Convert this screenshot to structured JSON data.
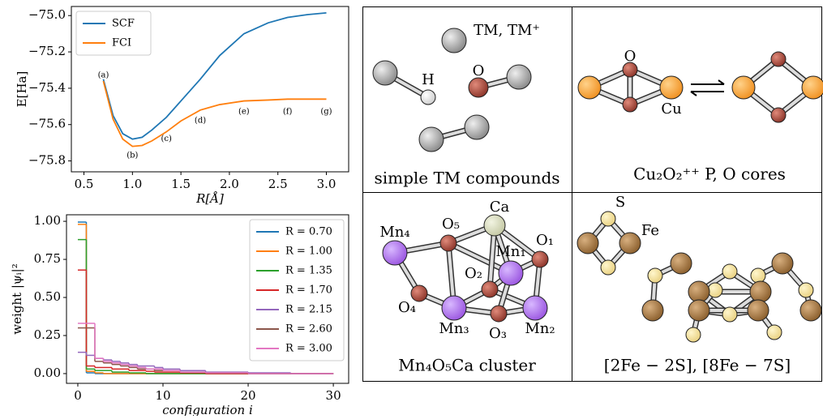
{
  "chart_data": [
    {
      "type": "line",
      "ylabel": "E[Ha]",
      "xlabel": "R[Å]",
      "x": [
        0.7,
        0.8,
        0.9,
        1.0,
        1.1,
        1.2,
        1.35,
        1.5,
        1.7,
        1.9,
        2.15,
        2.4,
        2.6,
        2.8,
        3.0
      ],
      "series": [
        {
          "name": "SCF",
          "color": "#1f77b4",
          "values": [
            -75.35,
            -75.55,
            -75.65,
            -75.68,
            -75.67,
            -75.63,
            -75.56,
            -75.47,
            -75.35,
            -75.22,
            -75.1,
            -75.04,
            -75.01,
            -74.995,
            -74.985
          ]
        },
        {
          "name": "FCI",
          "color": "#ff7f0e",
          "values": [
            -75.36,
            -75.57,
            -75.68,
            -75.72,
            -75.715,
            -75.69,
            -75.64,
            -75.58,
            -75.52,
            -75.49,
            -75.47,
            -75.465,
            -75.46,
            -75.46,
            -75.46
          ]
        }
      ],
      "annotations": [
        {
          "text": "(a)",
          "x": 0.7,
          "y": -75.33
        },
        {
          "text": "(b)",
          "x": 1.0,
          "y": -75.77
        },
        {
          "text": "(c)",
          "x": 1.35,
          "y": -75.68
        },
        {
          "text": "(d)",
          "x": 1.7,
          "y": -75.58
        },
        {
          "text": "(e)",
          "x": 2.15,
          "y": -75.53
        },
        {
          "text": "(f)",
          "x": 2.6,
          "y": -75.53
        },
        {
          "text": "(g)",
          "x": 3.0,
          "y": -75.53
        }
      ],
      "xlim": [
        0.37,
        3.23
      ],
      "xticks": [
        0.5,
        {
          "value": 1,
          "label": "1.0"
        },
        1.5,
        {
          "value": 2,
          "label": "2.0"
        },
        2.5,
        {
          "value": 3,
          "label": "3.0"
        }
      ],
      "ylim": [
        -75.86,
        -74.95
      ],
      "yticks": [
        {
          "value": -75.8,
          "label": "−75.8"
        },
        {
          "value": -75.6,
          "label": "−75.6"
        },
        {
          "value": -75.4,
          "label": "−75.4"
        },
        {
          "value": -75.2,
          "label": "−75.2"
        },
        {
          "value": -75,
          "label": "−75.0"
        }
      ],
      "legend": "upper left"
    },
    {
      "type": "step",
      "ylabel": "weight |ψᵢ|²",
      "xlabel": "configuration i",
      "x": [
        0,
        1,
        2,
        3,
        4,
        5,
        6,
        7,
        8,
        9,
        10,
        12,
        15,
        20,
        25,
        30
      ],
      "series": [
        {
          "name": "R = 0.70",
          "color": "#1f77b4",
          "values": [
            0.995,
            0.005,
            0,
            0,
            0,
            0,
            0,
            0,
            0,
            0,
            0,
            0,
            0,
            0,
            0,
            0
          ]
        },
        {
          "name": "R = 1.00",
          "color": "#ff7f0e",
          "values": [
            0.98,
            0.015,
            0.005,
            0,
            0,
            0,
            0,
            0,
            0,
            0,
            0,
            0,
            0,
            0,
            0,
            0
          ]
        },
        {
          "name": "R = 1.35",
          "color": "#2ca02c",
          "values": [
            0.88,
            0.03,
            0.02,
            0.02,
            0.01,
            0.01,
            0.005,
            0.005,
            0,
            0,
            0,
            0,
            0,
            0,
            0,
            0
          ]
        },
        {
          "name": "R = 1.70",
          "color": "#d62728",
          "values": [
            0.68,
            0.05,
            0.04,
            0.04,
            0.03,
            0.03,
            0.02,
            0.02,
            0.015,
            0.01,
            0.01,
            0.005,
            0,
            0,
            0,
            0
          ]
        },
        {
          "name": "R = 2.15",
          "color": "#9467bd",
          "values": [
            0.14,
            0.12,
            0.1,
            0.09,
            0.08,
            0.07,
            0.06,
            0.05,
            0.05,
            0.04,
            0.03,
            0.02,
            0.01,
            0.005,
            0,
            0
          ]
        },
        {
          "name": "R = 2.60",
          "color": "#8c564b",
          "values": [
            0.3,
            0.3,
            0.08,
            0.07,
            0.06,
            0.05,
            0.04,
            0.03,
            0.03,
            0.02,
            0.02,
            0.01,
            0.005,
            0,
            0,
            0
          ]
        },
        {
          "name": "R = 3.00",
          "color": "#e377c2",
          "values": [
            0.33,
            0.33,
            0.1,
            0.08,
            0.07,
            0.06,
            0.05,
            0.04,
            0.03,
            0.03,
            0.02,
            0.01,
            0.005,
            0,
            0,
            0
          ]
        }
      ],
      "xlim": [
        -1.33,
        31.8
      ],
      "xticks": [
        0,
        10,
        20,
        30
      ],
      "ylim": [
        -0.064,
        1.043
      ],
      "yticks": [
        {
          "value": 0,
          "label": "0.00"
        },
        {
          "value": 0.25,
          "label": "0.25"
        },
        {
          "value": 0.5,
          "label": "0.50"
        },
        {
          "value": 0.75,
          "label": "0.75"
        },
        {
          "value": 1,
          "label": "1.00"
        }
      ],
      "legend": "upper right"
    }
  ],
  "panels": [
    {
      "caption": "simple TM compounds",
      "labels": [
        "TM, TM⁺",
        "H",
        "O"
      ]
    },
    {
      "caption": "Cu₂O₂⁺⁺ P, O cores",
      "labels": [
        "O",
        "Cu"
      ]
    },
    {
      "caption": "Mn₄O₅Ca cluster",
      "labels": [
        "Ca",
        "Mn₄",
        "O₅",
        "Mn₁",
        "O₁",
        "O₂",
        "O₄",
        "Mn₃",
        "O₃",
        "Mn₂"
      ]
    },
    {
      "caption": "[2Fe − 2S], [8Fe − 7S]",
      "labels": [
        "S",
        "Fe"
      ]
    }
  ]
}
